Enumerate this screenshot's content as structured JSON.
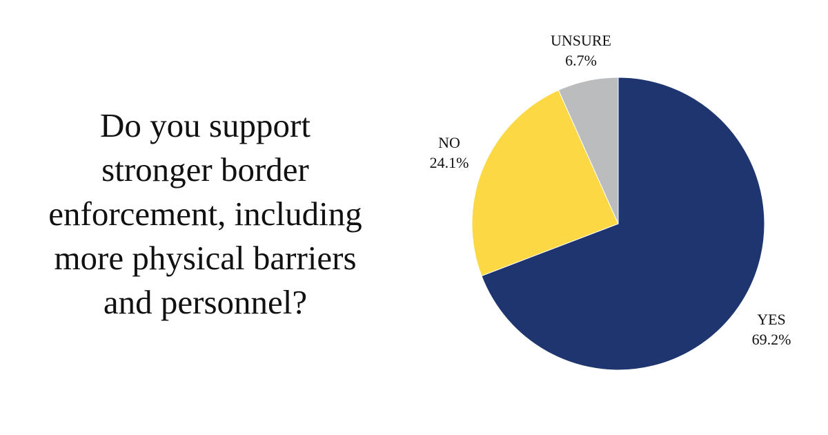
{
  "question": {
    "lines": [
      "Do you support",
      "stronger border",
      "enforcement, including",
      "more physical barriers",
      "and personnel?"
    ]
  },
  "chart_data": {
    "type": "pie",
    "title": "",
    "slices": [
      {
        "label": "YES",
        "value": 69.2,
        "display": "69.2%",
        "color": "#1f3570"
      },
      {
        "label": "NO",
        "value": 24.1,
        "display": "24.1%",
        "color": "#fcd944"
      },
      {
        "label": "UNSURE",
        "value": 6.7,
        "display": "6.7%",
        "color": "#bbbcbe"
      }
    ],
    "start_angle": "12 o'clock",
    "direction": "clockwise",
    "legend": "none (direct labels)"
  }
}
